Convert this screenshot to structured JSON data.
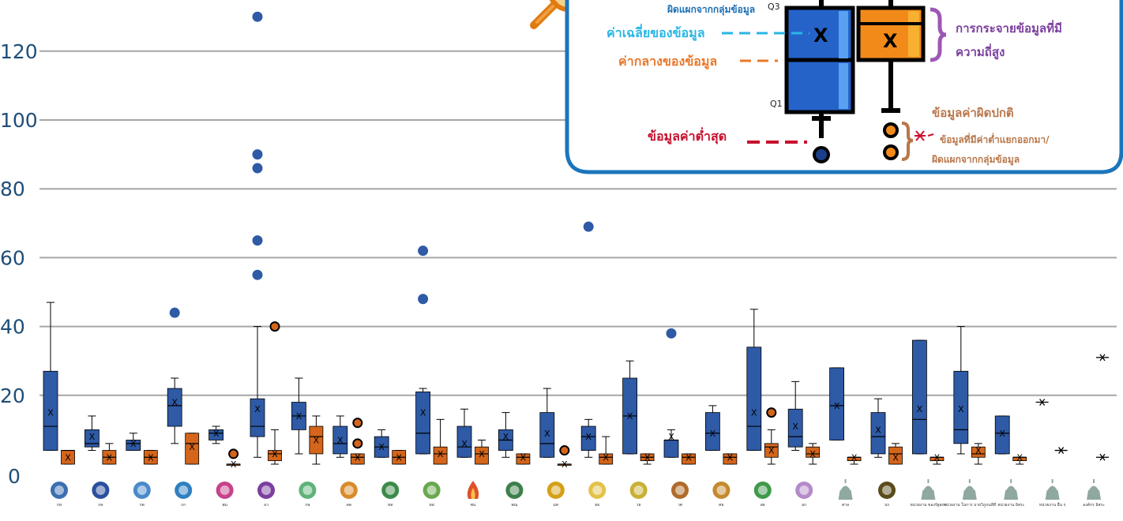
{
  "chart_data": {
    "type": "box",
    "title": "",
    "xlabel": "",
    "ylabel": "",
    "ylim": [
      0,
      140
    ],
    "yticks": [
      0,
      20,
      40,
      60,
      80,
      100,
      120
    ],
    "grid": true,
    "colors": {
      "series1": "#2e5aa6",
      "series2": "#d4651a",
      "grid": "#a6a6a6",
      "axis_text": "#1f4e79"
    },
    "categories": [
      {
        "code": "กห",
        "icon": "emblem-icon",
        "color": "#3b6fb0"
      },
      {
        "code": "กค",
        "icon": "emblem-icon",
        "color": "#2b4f9e"
      },
      {
        "code": "กต",
        "icon": "emblem-icon",
        "color": "#4a8acb"
      },
      {
        "code": "กก",
        "icon": "emblem-icon",
        "color": "#2f7fc2"
      },
      {
        "code": "พม",
        "icon": "emblem-icon",
        "color": "#c6428a"
      },
      {
        "code": "อว",
        "icon": "emblem-icon",
        "color": "#7b3f9e"
      },
      {
        "code": "กษ",
        "icon": "emblem-icon",
        "color": "#5fb37a"
      },
      {
        "code": "คค",
        "icon": "emblem-icon",
        "color": "#d98b2b"
      },
      {
        "code": "ทส",
        "icon": "emblem-icon",
        "color": "#3c8a4a"
      },
      {
        "code": "ทส",
        "icon": "emblem-icon",
        "color": "#6aa84f"
      },
      {
        "code": "พน",
        "icon": "flame-icon",
        "color": "#e0502a"
      },
      {
        "code": "พณ",
        "icon": "emblem-icon",
        "color": "#3d7f4a"
      },
      {
        "code": "มท",
        "icon": "emblem-icon",
        "color": "#d4a017"
      },
      {
        "code": "ยธ",
        "icon": "emblem-icon",
        "color": "#e3c24a"
      },
      {
        "code": "วธ",
        "icon": "emblem-icon",
        "color": "#c9b035"
      },
      {
        "code": "วศ",
        "icon": "emblem-icon",
        "color": "#b06a2a"
      },
      {
        "code": "ศธ",
        "icon": "emblem-icon",
        "color": "#c48a2e"
      },
      {
        "code": "สธ",
        "icon": "emblem-icon",
        "color": "#3f9a4a"
      },
      {
        "code": "อก",
        "icon": "emblem-icon",
        "color": "#b48ac8"
      },
      {
        "code": "ศาล",
        "icon": "building-icon",
        "color": "#8fa8a0"
      },
      {
        "code": "นร",
        "icon": "emblem-icon",
        "color": "#5a4b1a"
      },
      {
        "code": "หน่วยงาน ของรัฐสภา",
        "icon": "building-icon",
        "color": "#8fa8a0"
      },
      {
        "code": "หน่วยงาน ในการ บายวิภูภมลีที",
        "icon": "building-icon",
        "color": "#8fa8a0"
      },
      {
        "code": "หน่วยงาน อิสระ",
        "icon": "building-icon",
        "color": "#8fa8a0"
      },
      {
        "code": "หน่วยงาน อื่น ๆ",
        "icon": "building-icon",
        "color": "#8fa8a0"
      },
      {
        "code": "องค์กร อิสระ",
        "icon": "building-icon",
        "color": "#8fa8a0"
      }
    ],
    "series": [
      {
        "boxes": [
          {
            "cat": 0,
            "min": 4,
            "q1": 4,
            "median": 11,
            "q3": 27,
            "max": 47,
            "mean": 15,
            "outliers": []
          },
          {
            "cat": 1,
            "min": 4,
            "q1": 5,
            "median": 6,
            "q3": 10,
            "max": 14,
            "mean": 8,
            "outliers": []
          },
          {
            "cat": 2,
            "min": 4,
            "q1": 4,
            "median": 6,
            "q3": 7,
            "max": 9,
            "mean": 6,
            "outliers": []
          },
          {
            "cat": 3,
            "min": 6,
            "q1": 11,
            "median": 17,
            "q3": 22,
            "max": 25,
            "mean": 18,
            "outliers": [
              44
            ]
          },
          {
            "cat": 4,
            "min": 6,
            "q1": 7,
            "median": 9,
            "q3": 10,
            "max": 11,
            "mean": 9,
            "outliers": []
          },
          {
            "cat": 5,
            "min": 2,
            "q1": 8,
            "median": 11,
            "q3": 19,
            "max": 40,
            "mean": 16,
            "outliers": [
              55,
              65,
              86,
              90,
              130
            ]
          },
          {
            "cat": 6,
            "min": 3,
            "q1": 10,
            "median": 14,
            "q3": 18,
            "max": 25,
            "mean": 14,
            "outliers": []
          },
          {
            "cat": 7,
            "min": 2,
            "q1": 3,
            "median": 6,
            "q3": 11,
            "max": 14,
            "mean": 7,
            "outliers": []
          },
          {
            "cat": 8,
            "min": 2,
            "q1": 2,
            "median": 5,
            "q3": 8,
            "max": 10,
            "mean": 5,
            "outliers": []
          },
          {
            "cat": 9,
            "min": 3,
            "q1": 3,
            "median": 9,
            "q3": 21,
            "max": 22,
            "mean": 15,
            "outliers": [
              48,
              62
            ]
          },
          {
            "cat": 10,
            "min": 2,
            "q1": 2,
            "median": 5,
            "q3": 11,
            "max": 16,
            "mean": 6,
            "outliers": []
          },
          {
            "cat": 11,
            "min": 2,
            "q1": 4,
            "median": 7,
            "q3": 10,
            "max": 15,
            "mean": 8,
            "outliers": []
          },
          {
            "cat": 12,
            "min": 2,
            "q1": 2,
            "median": 6,
            "q3": 15,
            "max": 22,
            "mean": 9,
            "outliers": []
          },
          {
            "cat": 13,
            "min": 2,
            "q1": 4,
            "median": 8,
            "q3": 11,
            "max": 13,
            "mean": 8,
            "outliers": [
              69
            ]
          },
          {
            "cat": 14,
            "min": 3,
            "q1": 3,
            "median": 14,
            "q3": 25,
            "max": 30,
            "mean": 14,
            "outliers": []
          },
          {
            "cat": 15,
            "min": 2,
            "q1": 2,
            "median": 7,
            "q3": 7,
            "max": 10,
            "mean": 8,
            "outliers": [
              38
            ]
          },
          {
            "cat": 16,
            "min": 4,
            "q1": 4,
            "median": 9,
            "q3": 15,
            "max": 17,
            "mean": 9,
            "outliers": []
          },
          {
            "cat": 17,
            "min": 4,
            "q1": 4,
            "median": 11,
            "q3": 34,
            "max": 45,
            "mean": 15,
            "outliers": []
          },
          {
            "cat": 18,
            "min": 4,
            "q1": 5,
            "median": 8,
            "q3": 16,
            "max": 24,
            "mean": 11,
            "outliers": []
          },
          {
            "cat": 19,
            "min": 7,
            "q1": 7,
            "median": 17,
            "q3": 28,
            "max": 28,
            "mean": 17,
            "outliers": []
          },
          {
            "cat": 20,
            "min": 2,
            "q1": 3,
            "median": 8,
            "q3": 15,
            "max": 19,
            "mean": 10,
            "outliers": []
          },
          {
            "cat": 21,
            "min": 3,
            "q1": 3,
            "median": 13,
            "q3": 36,
            "max": 36,
            "mean": 16,
            "outliers": []
          },
          {
            "cat": 22,
            "min": 3,
            "q1": 6,
            "median": 10,
            "q3": 27,
            "max": 40,
            "mean": 16,
            "outliers": []
          },
          {
            "cat": 23,
            "min": 3,
            "q1": 3,
            "median": 9,
            "q3": 14,
            "max": 14,
            "mean": 9,
            "outliers": []
          }
        ],
        "points": [
          {
            "cat": 24,
            "value": 18
          }
        ]
      },
      {
        "boxes": [
          {
            "cat": 0,
            "min": 0,
            "q1": 0,
            "median": 4,
            "q3": 4,
            "max": 4,
            "mean": 2,
            "outliers": []
          },
          {
            "cat": 1,
            "min": 0,
            "q1": 0,
            "median": 2,
            "q3": 4,
            "max": 6,
            "mean": 2,
            "outliers": []
          },
          {
            "cat": 2,
            "min": 0,
            "q1": 0,
            "median": 2,
            "q3": 4,
            "max": 4,
            "mean": 2,
            "outliers": []
          },
          {
            "cat": 3,
            "min": 0,
            "q1": 0,
            "median": 6,
            "q3": 9,
            "max": 9,
            "mean": 5,
            "outliers": []
          },
          {
            "cat": 4,
            "min": 0,
            "q1": 0,
            "median": 0,
            "q3": 0,
            "max": 0,
            "mean": 0,
            "outliers": [
              3
            ]
          },
          {
            "cat": 5,
            "min": 0,
            "q1": 1,
            "median": 3,
            "q3": 4,
            "max": 10,
            "mean": 3,
            "outliers": [
              40
            ]
          },
          {
            "cat": 6,
            "min": 0,
            "q1": 3,
            "median": 8,
            "q3": 11,
            "max": 14,
            "mean": 7,
            "outliers": []
          },
          {
            "cat": 7,
            "min": 0,
            "q1": 0,
            "median": 2,
            "q3": 3,
            "max": 3,
            "mean": 2,
            "outliers": [
              6,
              12
            ]
          },
          {
            "cat": 8,
            "min": 0,
            "q1": 0,
            "median": 2,
            "q3": 4,
            "max": 4,
            "mean": 2,
            "outliers": []
          },
          {
            "cat": 9,
            "min": 0,
            "q1": 0,
            "median": 3,
            "q3": 5,
            "max": 13,
            "mean": 3,
            "outliers": []
          },
          {
            "cat": 10,
            "min": 0,
            "q1": 0,
            "median": 3,
            "q3": 5,
            "max": 7,
            "mean": 3,
            "outliers": []
          },
          {
            "cat": 11,
            "min": 0,
            "q1": 0,
            "median": 2,
            "q3": 3,
            "max": 3,
            "mean": 2,
            "outliers": []
          },
          {
            "cat": 12,
            "min": 0,
            "q1": 0,
            "median": 0,
            "q3": 0,
            "max": 0,
            "mean": 0,
            "outliers": [
              4
            ]
          },
          {
            "cat": 13,
            "min": 0,
            "q1": 0,
            "median": 2,
            "q3": 3,
            "max": 8,
            "mean": 2,
            "outliers": []
          },
          {
            "cat": 14,
            "min": 0,
            "q1": 1,
            "median": 2,
            "q3": 3,
            "max": 3,
            "mean": 2,
            "outliers": []
          },
          {
            "cat": 15,
            "min": 0,
            "q1": 0,
            "median": 2,
            "q3": 3,
            "max": 3,
            "mean": 2,
            "outliers": []
          },
          {
            "cat": 16,
            "min": 0,
            "q1": 0,
            "median": 2,
            "q3": 3,
            "max": 3,
            "mean": 2,
            "outliers": []
          },
          {
            "cat": 17,
            "min": 0,
            "q1": 2,
            "median": 5,
            "q3": 6,
            "max": 10,
            "mean": 4,
            "outliers": [
              15
            ]
          },
          {
            "cat": 18,
            "min": 0,
            "q1": 2,
            "median": 3,
            "q3": 5,
            "max": 6,
            "mean": 3,
            "outliers": []
          },
          {
            "cat": 19,
            "min": 0,
            "q1": 1,
            "median": 2,
            "q3": 2,
            "max": 2,
            "mean": 2,
            "outliers": []
          },
          {
            "cat": 20,
            "min": 0,
            "q1": 0,
            "median": 3,
            "q3": 5,
            "max": 6,
            "mean": 2,
            "outliers": []
          },
          {
            "cat": 21,
            "min": 0,
            "q1": 1,
            "median": 2,
            "q3": 2,
            "max": 2,
            "mean": 2,
            "outliers": []
          },
          {
            "cat": 22,
            "min": 0,
            "q1": 2,
            "median": 3,
            "q3": 5,
            "max": 6,
            "mean": 4,
            "outliers": []
          },
          {
            "cat": 23,
            "min": 0,
            "q1": 1,
            "median": 2,
            "q3": 2,
            "max": 2,
            "mean": 2,
            "outliers": []
          }
        ],
        "points": [
          {
            "cat": 24,
            "value": 4
          },
          {
            "cat": 25,
            "value": 31
          },
          {
            "cat": 25,
            "value": 2
          }
        ]
      }
    ]
  },
  "legend": {
    "q3_label": "Q3",
    "q1_label": "Q1",
    "mean_marker": "X",
    "top_note": "ผิดแผกจากกลุ่มข้อมูล",
    "mean_label": "ค่าเฉลี่ยของข้อมูล",
    "median_label": "ค่ากลางของข้อมูล",
    "min_label": "ข้อมูลค่าต่ำสุด",
    "spread_label_line1": "การกระจายข้อมูลที่มี",
    "spread_label_line2": "ความถี่สูง",
    "outlier_title": "ข้อมูลค่าผิดปกติ",
    "outlier_desc_line1": "ข้อมูลที่มีค่าต่ำแยกออกมา/",
    "outlier_desc_line2": "ผิดแผกจากกลุ่มข้อมูล",
    "colors": {
      "border": "#1b75bc",
      "mean": "#29b6e6",
      "median": "#e9782b",
      "min": "#c8102e",
      "spread": "#7b3f9e",
      "outlier": "#b8774a"
    }
  }
}
